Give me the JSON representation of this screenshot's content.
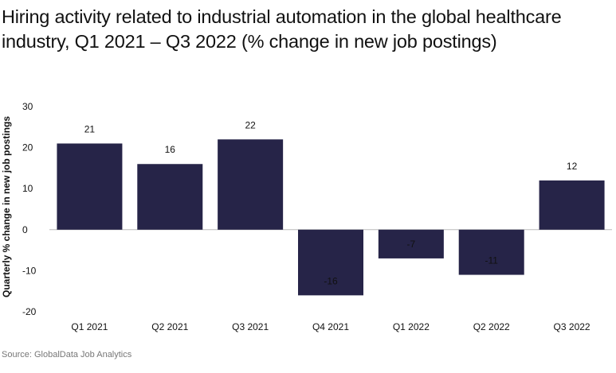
{
  "title": "Hiring activity related to industrial automation in the global healthcare industry, Q1 2021 – Q3 2022 (% change in new job postings)",
  "source": "Source: GlobalData Job Analytics",
  "colors": {
    "bar": "#262448",
    "zero_line": "#bbbbbb",
    "text": "#111111"
  },
  "chart_data": {
    "type": "bar",
    "title": "Hiring activity related to industrial automation in the global healthcare industry, Q1 2021 – Q3 2022 (% change in new job postings)",
    "xlabel": "",
    "ylabel": "Quarterly % change in new job postings",
    "categories": [
      "Q1 2021",
      "Q2 2021",
      "Q3 2021",
      "Q4 2021",
      "Q1 2022",
      "Q2 2022",
      "Q3 2022"
    ],
    "values": [
      21,
      16,
      22,
      -16,
      -7,
      -11,
      12
    ],
    "value_labels": [
      "21",
      "16",
      "22",
      "-16",
      "-7",
      "-11",
      "12"
    ],
    "ylim": [
      -20,
      30
    ],
    "yticks": [
      30,
      20,
      10,
      0,
      -10,
      -20
    ],
    "ytick_labels": [
      "30",
      "20",
      "10",
      "0",
      "-10",
      "-20"
    ],
    "grid": false,
    "legend": "none"
  }
}
